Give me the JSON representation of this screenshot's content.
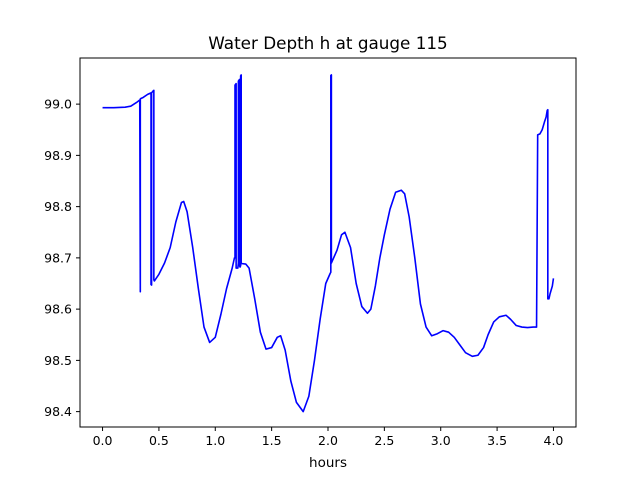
{
  "chart_data": {
    "type": "line",
    "title": "Water Depth h at gauge 115",
    "xlabel": "hours",
    "ylabel": "",
    "xlim": [
      -0.2,
      4.2
    ],
    "ylim": [
      98.37,
      99.09
    ],
    "xticks": [
      0.0,
      0.5,
      1.0,
      1.5,
      2.0,
      2.5,
      3.0,
      3.5,
      4.0
    ],
    "xtick_labels": [
      "0.0",
      "0.5",
      "1.0",
      "1.5",
      "2.0",
      "2.5",
      "3.0",
      "3.5",
      "4.0"
    ],
    "yticks": [
      98.4,
      98.5,
      98.6,
      98.7,
      98.8,
      98.9,
      99.0
    ],
    "ytick_labels": [
      "98.4",
      "98.5",
      "98.6",
      "98.7",
      "98.8",
      "98.9",
      "99.0"
    ],
    "grid": false,
    "legend": "none",
    "series": [
      {
        "color": "#0000ff",
        "x": [
          0.0,
          0.1,
          0.2,
          0.25,
          0.3,
          0.33,
          0.335,
          0.335,
          0.34,
          0.34,
          0.36,
          0.4,
          0.43,
          0.43,
          0.435,
          0.435,
          0.45,
          0.455,
          0.455,
          0.46,
          0.46,
          0.5,
          0.55,
          0.6,
          0.65,
          0.7,
          0.72,
          0.75,
          0.8,
          0.85,
          0.9,
          0.95,
          1.0,
          1.05,
          1.1,
          1.15,
          1.17,
          1.175,
          1.175,
          1.185,
          1.185,
          1.2,
          1.205,
          1.205,
          1.215,
          1.215,
          1.22,
          1.225,
          1.225,
          1.23,
          1.23,
          1.27,
          1.3,
          1.35,
          1.4,
          1.45,
          1.5,
          1.55,
          1.58,
          1.62,
          1.67,
          1.72,
          1.78,
          1.83,
          1.88,
          1.93,
          1.98,
          2.02,
          2.025,
          2.025,
          2.03,
          2.03,
          2.04,
          2.08,
          2.12,
          2.15,
          2.2,
          2.25,
          2.3,
          2.35,
          2.38,
          2.42,
          2.46,
          2.5,
          2.55,
          2.6,
          2.65,
          2.68,
          2.72,
          2.77,
          2.82,
          2.87,
          2.92,
          2.97,
          3.02,
          3.07,
          3.12,
          3.17,
          3.22,
          3.28,
          3.33,
          3.38,
          3.42,
          3.47,
          3.52,
          3.58,
          3.62,
          3.67,
          3.72,
          3.77,
          3.82,
          3.85,
          3.86,
          3.86,
          3.88,
          3.9,
          3.92,
          3.935,
          3.945,
          3.95,
          3.95,
          3.96,
          3.97,
          3.99,
          4.0
        ],
        "y": [
          98.993,
          98.993,
          98.994,
          98.996,
          99.003,
          99.008,
          98.634,
          99.01,
          99.011,
          99.011,
          99.013,
          99.019,
          99.022,
          98.648,
          98.647,
          99.022,
          99.026,
          99.027,
          98.657,
          98.655,
          98.655,
          98.668,
          98.69,
          98.72,
          98.77,
          98.808,
          98.81,
          98.79,
          98.72,
          98.64,
          98.565,
          98.535,
          98.545,
          98.59,
          98.64,
          98.68,
          98.7,
          98.7,
          99.037,
          99.04,
          98.68,
          98.68,
          98.69,
          99.045,
          99.048,
          98.685,
          98.682,
          98.685,
          99.055,
          99.057,
          98.689,
          98.688,
          98.68,
          98.62,
          98.555,
          98.522,
          98.525,
          98.545,
          98.548,
          98.52,
          98.46,
          98.418,
          98.4,
          98.43,
          98.5,
          98.58,
          98.65,
          98.67,
          98.672,
          99.056,
          99.057,
          98.69,
          98.695,
          98.715,
          98.745,
          98.75,
          98.72,
          98.65,
          98.605,
          98.592,
          98.6,
          98.645,
          98.7,
          98.745,
          98.795,
          98.828,
          98.832,
          98.825,
          98.78,
          98.7,
          98.61,
          98.565,
          98.548,
          98.552,
          98.558,
          98.555,
          98.545,
          98.53,
          98.515,
          98.508,
          98.51,
          98.525,
          98.55,
          98.575,
          98.585,
          98.588,
          98.58,
          98.568,
          98.565,
          98.564,
          98.565,
          98.565,
          98.935,
          98.94,
          98.942,
          98.95,
          98.965,
          98.975,
          98.988,
          98.989,
          98.62,
          98.62,
          98.63,
          98.645,
          98.66
        ]
      }
    ]
  }
}
